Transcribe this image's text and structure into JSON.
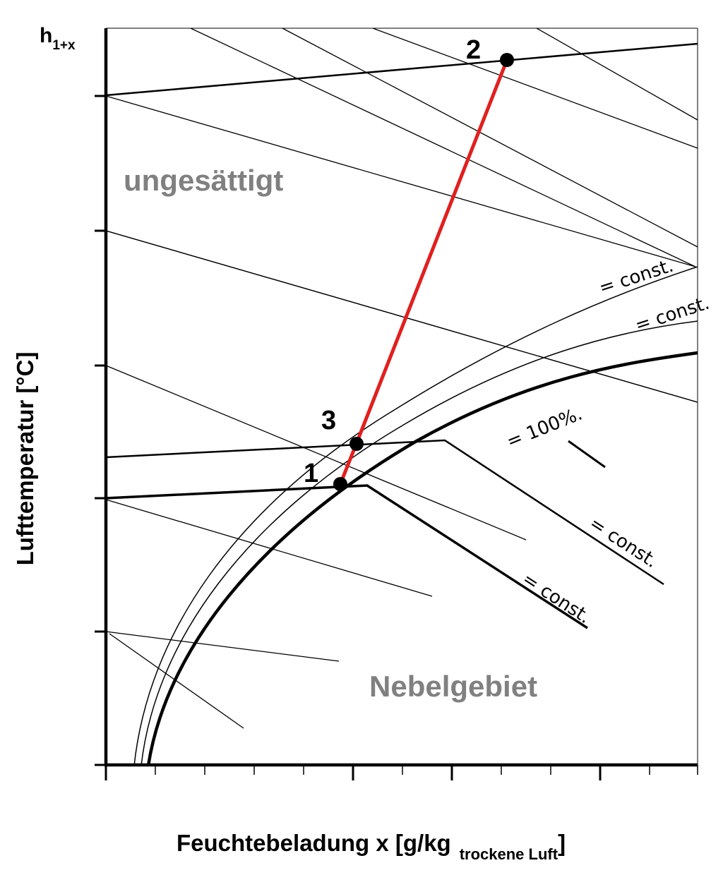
{
  "colors": {
    "process_line": "#e02020",
    "region_text": "#808080",
    "ink": "#000000"
  },
  "axes": {
    "y_label": "Lufttemperatur [°C]",
    "x_label_main": "Feuchtebeladung  x  [g/kg",
    "x_label_sub": "trockene Luft",
    "x_label_close": "]",
    "enthalpy_label_main": "h",
    "enthalpy_label_sub": "1+x"
  },
  "regions": {
    "unsaturated": "ungesättigt",
    "fog": "Nebelgebiet"
  },
  "states": [
    {
      "id": "1",
      "label": "1"
    },
    {
      "id": "2",
      "label": "2"
    },
    {
      "id": "3",
      "label": "3"
    }
  ],
  "curve_labels": {
    "rh_const_1": "= const.",
    "rh_const_2": "= const.",
    "rh_100": "= 100%.",
    "h_const_1": "= const.",
    "h_const_2": "= const."
  }
}
